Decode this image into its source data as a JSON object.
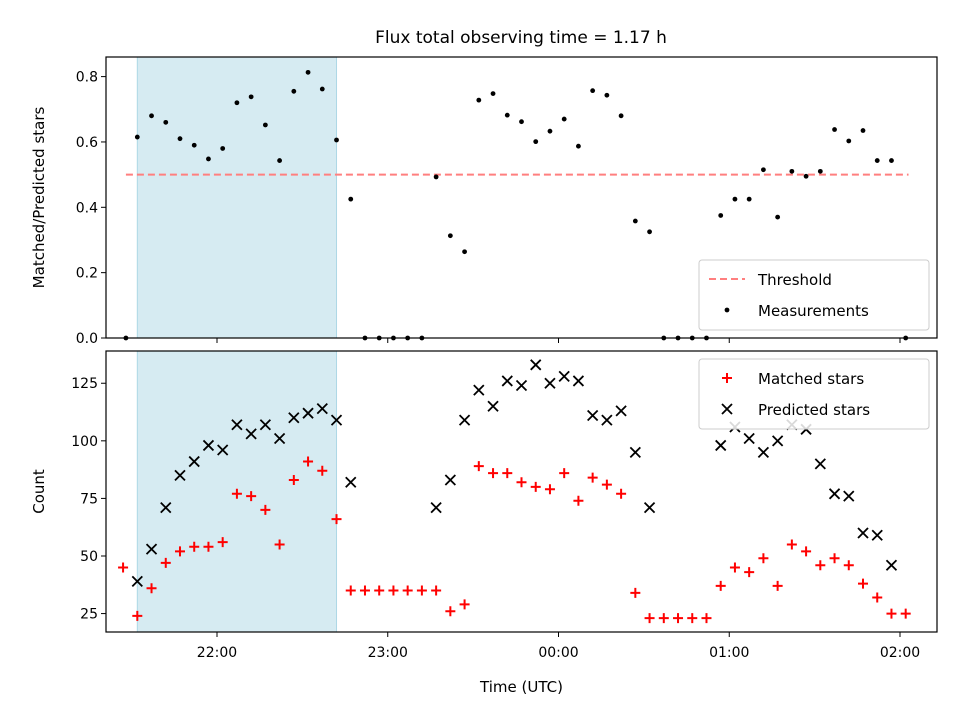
{
  "figure_title": "Flux total observing time = 1.17 h",
  "colors": {
    "threshold": "#ff7f7f",
    "measurements": "#000000",
    "matched": "#ff0000",
    "predicted": "#000000",
    "highlight": "#add8e6"
  },
  "chart_data": [
    {
      "type": "scatter",
      "ylabel": "Matched/Predicted stars",
      "ylim": [
        0,
        0.86
      ],
      "yticks": [
        0.0,
        0.2,
        0.4,
        0.6,
        0.8
      ],
      "ytick_labels": [
        "0.0",
        "0.2",
        "0.4",
        "0.6",
        "0.8"
      ],
      "xlim": [
        "21:21",
        "02:13"
      ],
      "highlight_span": [
        "21:32",
        "22:42"
      ],
      "legend_position": "lower right",
      "threshold": {
        "name": "Threshold",
        "value": 0.5,
        "x_range": [
          "21:28",
          "02:03"
        ]
      },
      "series": [
        {
          "name": "Measurements",
          "marker": "dot",
          "points": [
            [
              "21:28",
              0.0
            ],
            [
              "21:32",
              0.615
            ],
            [
              "21:37",
              0.68
            ],
            [
              "21:42",
              0.66
            ],
            [
              "21:47",
              0.61
            ],
            [
              "21:52",
              0.59
            ],
            [
              "21:57",
              0.548
            ],
            [
              "22:02",
              0.58
            ],
            [
              "22:07",
              0.72
            ],
            [
              "22:12",
              0.738
            ],
            [
              "22:17",
              0.652
            ],
            [
              "22:22",
              0.543
            ],
            [
              "22:27",
              0.755
            ],
            [
              "22:32",
              0.813
            ],
            [
              "22:37",
              0.762
            ],
            [
              "22:42",
              0.606
            ],
            [
              "22:47",
              0.425
            ],
            [
              "22:52",
              0.0
            ],
            [
              "22:57",
              0.0
            ],
            [
              "23:02",
              0.0
            ],
            [
              "23:07",
              0.0
            ],
            [
              "23:12",
              0.0
            ],
            [
              "23:17",
              0.493
            ],
            [
              "23:22",
              0.313
            ],
            [
              "23:27",
              0.264
            ],
            [
              "23:32",
              0.728
            ],
            [
              "23:37",
              0.748
            ],
            [
              "23:42",
              0.682
            ],
            [
              "23:47",
              0.662
            ],
            [
              "23:52",
              0.601
            ],
            [
              "23:57",
              0.633
            ],
            [
              "00:02",
              0.67
            ],
            [
              "00:07",
              0.587
            ],
            [
              "00:12",
              0.757
            ],
            [
              "00:17",
              0.743
            ],
            [
              "00:22",
              0.68
            ],
            [
              "00:27",
              0.358
            ],
            [
              "00:32",
              0.325
            ],
            [
              "00:37",
              0.0
            ],
            [
              "00:42",
              0.0
            ],
            [
              "00:47",
              0.0
            ],
            [
              "00:52",
              0.0
            ],
            [
              "00:57",
              0.375
            ],
            [
              "01:02",
              0.425
            ],
            [
              "01:07",
              0.425
            ],
            [
              "01:12",
              0.515
            ],
            [
              "01:17",
              0.37
            ],
            [
              "01:22",
              0.51
            ],
            [
              "01:27",
              0.495
            ],
            [
              "01:32",
              0.51
            ],
            [
              "01:37",
              0.638
            ],
            [
              "01:42",
              0.603
            ],
            [
              "01:47",
              0.635
            ],
            [
              "01:52",
              0.543
            ],
            [
              "01:57",
              0.543
            ],
            [
              "02:02",
              0.0
            ]
          ]
        }
      ]
    },
    {
      "type": "scatter",
      "ylabel": "Count",
      "xlabel": "Time (UTC)",
      "ylim": [
        17,
        139
      ],
      "yticks": [
        25,
        50,
        75,
        100,
        125
      ],
      "ytick_labels": [
        "25",
        "50",
        "75",
        "100",
        "125"
      ],
      "xlim": [
        "21:21",
        "02:13"
      ],
      "xticks": [
        "22:00",
        "23:00",
        "00:00",
        "01:00",
        "02:00"
      ],
      "xtick_labels": [
        "22:00",
        "23:00",
        "00:00",
        "01:00",
        "02:00"
      ],
      "highlight_span": [
        "21:32",
        "22:42"
      ],
      "legend_position": "upper right",
      "series": [
        {
          "name": "Matched stars",
          "marker": "plus",
          "points": [
            [
              "21:27",
              45
            ],
            [
              "21:32",
              24
            ],
            [
              "21:37",
              36
            ],
            [
              "21:42",
              47
            ],
            [
              "21:47",
              52
            ],
            [
              "21:52",
              54
            ],
            [
              "21:57",
              54
            ],
            [
              "22:02",
              56
            ],
            [
              "22:07",
              77
            ],
            [
              "22:12",
              76
            ],
            [
              "22:17",
              70
            ],
            [
              "22:22",
              55
            ],
            [
              "22:27",
              83
            ],
            [
              "22:32",
              91
            ],
            [
              "22:37",
              87
            ],
            [
              "22:42",
              66
            ],
            [
              "22:47",
              35
            ],
            [
              "22:52",
              35
            ],
            [
              "22:57",
              35
            ],
            [
              "23:02",
              35
            ],
            [
              "23:07",
              35
            ],
            [
              "23:12",
              35
            ],
            [
              "23:17",
              35
            ],
            [
              "23:22",
              26
            ],
            [
              "23:27",
              29
            ],
            [
              "23:32",
              89
            ],
            [
              "23:37",
              86
            ],
            [
              "23:42",
              86
            ],
            [
              "23:47",
              82
            ],
            [
              "23:52",
              80
            ],
            [
              "23:57",
              79
            ],
            [
              "00:02",
              86
            ],
            [
              "00:07",
              74
            ],
            [
              "00:12",
              84
            ],
            [
              "00:17",
              81
            ],
            [
              "00:22",
              77
            ],
            [
              "00:27",
              34
            ],
            [
              "00:32",
              23
            ],
            [
              "00:37",
              23
            ],
            [
              "00:42",
              23
            ],
            [
              "00:47",
              23
            ],
            [
              "00:52",
              23
            ],
            [
              "00:57",
              37
            ],
            [
              "01:02",
              45
            ],
            [
              "01:07",
              43
            ],
            [
              "01:12",
              49
            ],
            [
              "01:17",
              37
            ],
            [
              "01:22",
              55
            ],
            [
              "01:27",
              52
            ],
            [
              "01:32",
              46
            ],
            [
              "01:37",
              49
            ],
            [
              "01:42",
              46
            ],
            [
              "01:47",
              38
            ],
            [
              "01:52",
              32
            ],
            [
              "01:57",
              25
            ],
            [
              "02:02",
              25
            ]
          ]
        },
        {
          "name": "Predicted stars",
          "marker": "x",
          "points": [
            [
              "21:32",
              39
            ],
            [
              "21:37",
              53
            ],
            [
              "21:42",
              71
            ],
            [
              "21:47",
              85
            ],
            [
              "21:52",
              91
            ],
            [
              "21:57",
              98
            ],
            [
              "22:02",
              96
            ],
            [
              "22:07",
              107
            ],
            [
              "22:12",
              103
            ],
            [
              "22:17",
              107
            ],
            [
              "22:22",
              101
            ],
            [
              "22:27",
              110
            ],
            [
              "22:32",
              112
            ],
            [
              "22:37",
              114
            ],
            [
              "22:42",
              109
            ],
            [
              "22:47",
              82
            ],
            [
              "23:17",
              71
            ],
            [
              "23:22",
              83
            ],
            [
              "23:27",
              109
            ],
            [
              "23:32",
              122
            ],
            [
              "23:37",
              115
            ],
            [
              "23:42",
              126
            ],
            [
              "23:47",
              124
            ],
            [
              "23:52",
              133
            ],
            [
              "23:57",
              125
            ],
            [
              "00:02",
              128
            ],
            [
              "00:07",
              126
            ],
            [
              "00:12",
              111
            ],
            [
              "00:17",
              109
            ],
            [
              "00:22",
              113
            ],
            [
              "00:27",
              95
            ],
            [
              "00:32",
              71
            ],
            [
              "00:57",
              98
            ],
            [
              "01:02",
              106
            ],
            [
              "01:07",
              101
            ],
            [
              "01:12",
              95
            ],
            [
              "01:17",
              100
            ],
            [
              "01:22",
              107
            ],
            [
              "01:27",
              105
            ],
            [
              "01:32",
              90
            ],
            [
              "01:37",
              77
            ],
            [
              "01:42",
              76
            ],
            [
              "01:47",
              60
            ],
            [
              "01:52",
              59
            ],
            [
              "01:57",
              46
            ]
          ]
        }
      ]
    }
  ]
}
